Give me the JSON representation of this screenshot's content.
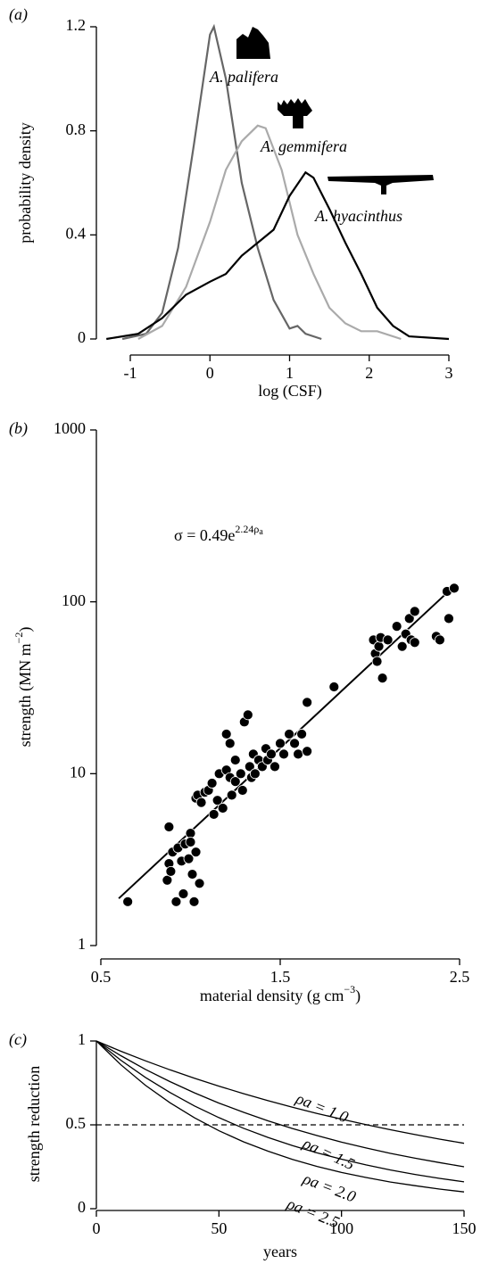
{
  "chart_data": [
    {
      "type": "line",
      "panel_label": "(a)",
      "xlabel": [
        "log (CSF)"
      ],
      "ylabel": [
        "probability density"
      ],
      "xlim": [
        -1,
        3
      ],
      "xticks": [
        -1,
        0,
        1,
        2,
        3
      ],
      "ylim": [
        0,
        1.2
      ],
      "yticks": [
        0,
        0.4,
        0.8,
        1.2
      ],
      "grid": false,
      "series": [
        {
          "name": "A. palifera",
          "color": "#666666",
          "x": [
            -1.1,
            -0.8,
            -0.6,
            -0.4,
            -0.2,
            0,
            0.05,
            0.2,
            0.4,
            0.6,
            0.8,
            1.0,
            1.1,
            1.2,
            1.4
          ],
          "values": [
            0,
            0.02,
            0.1,
            0.35,
            0.75,
            1.17,
            1.2,
            1.0,
            0.6,
            0.35,
            0.15,
            0.04,
            0.05,
            0.02,
            0
          ]
        },
        {
          "name": "A. gemmifera",
          "color": "#aaaaaa",
          "x": [
            -0.9,
            -0.6,
            -0.3,
            0,
            0.2,
            0.4,
            0.6,
            0.7,
            0.9,
            1.1,
            1.3,
            1.5,
            1.7,
            1.9,
            2.1,
            2.4
          ],
          "values": [
            0,
            0.05,
            0.2,
            0.45,
            0.65,
            0.76,
            0.82,
            0.81,
            0.65,
            0.4,
            0.25,
            0.12,
            0.06,
            0.03,
            0.03,
            0
          ]
        },
        {
          "name": "A. hyacinthus",
          "color": "#000000",
          "x": [
            -1.3,
            -0.9,
            -0.6,
            -0.3,
            0,
            0.2,
            0.4,
            0.6,
            0.8,
            1.0,
            1.2,
            1.3,
            1.5,
            1.7,
            1.9,
            2.1,
            2.3,
            2.5,
            3.0
          ],
          "values": [
            0,
            0.02,
            0.08,
            0.17,
            0.22,
            0.25,
            0.32,
            0.37,
            0.42,
            0.55,
            0.64,
            0.62,
            0.5,
            0.37,
            0.25,
            0.12,
            0.05,
            0.01,
            0
          ]
        }
      ]
    },
    {
      "type": "scatter",
      "panel_label": "(b)",
      "xlabel": [
        "material density (g cm",
        "−3",
        ")"
      ],
      "ylabel": [
        "strength (MN m",
        "−2",
        ")"
      ],
      "equation": [
        "σ = 0.49e",
        "2.24ρ",
        "a"
      ],
      "xlim": [
        0.5,
        2.5
      ],
      "xticks": [
        0.5,
        1.5,
        2.5
      ],
      "ylim": [
        1,
        1000
      ],
      "yticks": [
        1,
        10,
        100,
        1000
      ],
      "yscale": "log",
      "grid": false,
      "color": "#000000",
      "x": [
        0.65,
        0.87,
        0.88,
        0.88,
        0.89,
        0.9,
        0.92,
        0.93,
        0.95,
        0.96,
        0.97,
        0.99,
        1.0,
        1.0,
        1.01,
        1.02,
        1.03,
        1.03,
        1.04,
        1.05,
        1.06,
        1.08,
        1.1,
        1.12,
        1.13,
        1.15,
        1.16,
        1.18,
        1.2,
        1.2,
        1.22,
        1.22,
        1.23,
        1.25,
        1.25,
        1.28,
        1.29,
        1.3,
        1.32,
        1.33,
        1.34,
        1.35,
        1.36,
        1.38,
        1.4,
        1.42,
        1.43,
        1.45,
        1.47,
        1.5,
        1.52,
        1.55,
        1.58,
        1.6,
        1.62,
        1.65,
        1.65,
        1.8,
        2.02,
        2.03,
        2.04,
        2.05,
        2.07,
        2.06,
        2.1,
        2.15,
        2.18,
        2.2,
        2.22,
        2.23,
        2.25,
        2.25,
        2.37,
        2.39,
        2.43,
        2.44,
        2.47
      ],
      "values": [
        1.8,
        2.4,
        3.0,
        4.9,
        2.7,
        3.5,
        1.8,
        3.7,
        3.1,
        2.0,
        3.9,
        3.2,
        4.5,
        4.0,
        2.6,
        1.8,
        3.5,
        7.2,
        7.5,
        2.3,
        6.8,
        7.8,
        8.0,
        8.8,
        5.8,
        7.0,
        10.0,
        6.3,
        17.0,
        10.5,
        9.5,
        15.0,
        7.5,
        12.0,
        9.0,
        10.0,
        8.0,
        20.0,
        22.0,
        11.0,
        9.5,
        13.0,
        10.0,
        12.0,
        11.0,
        14.0,
        12.0,
        13.0,
        11.0,
        15.0,
        13.0,
        17.0,
        15.0,
        13.0,
        17.0,
        26.0,
        13.5,
        32.0,
        60.0,
        50.0,
        45.0,
        55.0,
        36.0,
        62.0,
        60.0,
        72.0,
        55.0,
        65.0,
        80.0,
        60.0,
        88.0,
        58.0,
        63.0,
        60.0,
        115.0,
        80.0,
        120.0
      ],
      "fit_line": {
        "x": [
          0.6,
          2.45
        ],
        "values": [
          1.88,
          118
        ]
      }
    },
    {
      "type": "line",
      "panel_label": "(c)",
      "xlabel": [
        "years"
      ],
      "ylabel": [
        "strength reduction"
      ],
      "xlim": [
        0,
        150
      ],
      "xticks": [
        0,
        50,
        100,
        150
      ],
      "ylim": [
        0,
        1
      ],
      "yticks": [
        0,
        0.5,
        1.0
      ],
      "grid": false,
      "hline": 0.5,
      "x": [
        0,
        10,
        20,
        30,
        40,
        50,
        60,
        70,
        80,
        90,
        100,
        110,
        120,
        130,
        140,
        150
      ],
      "series": [
        {
          "name": "ρa = 1.0",
          "color": "#000000",
          "values": [
            1,
            0.939,
            0.882,
            0.828,
            0.778,
            0.731,
            0.686,
            0.644,
            0.605,
            0.568,
            0.534,
            0.501,
            0.471,
            0.442,
            0.415,
            0.39
          ]
        },
        {
          "name": "ρa = 1.5",
          "color": "#000000",
          "values": [
            1,
            0.912,
            0.831,
            0.758,
            0.691,
            0.63,
            0.575,
            0.524,
            0.478,
            0.436,
            0.397,
            0.362,
            0.33,
            0.301,
            0.275,
            0.25
          ]
        },
        {
          "name": "ρa = 2.0",
          "color": "#000000",
          "values": [
            1,
            0.885,
            0.783,
            0.693,
            0.613,
            0.543,
            0.48,
            0.425,
            0.376,
            0.333,
            0.295,
            0.261,
            0.231,
            0.204,
            0.181,
            0.16
          ]
        },
        {
          "name": "ρa = 2.5",
          "color": "#000000",
          "values": [
            1,
            0.858,
            0.736,
            0.632,
            0.542,
            0.465,
            0.399,
            0.343,
            0.294,
            0.252,
            0.216,
            0.186,
            0.159,
            0.137,
            0.117,
            0.1
          ]
        }
      ]
    }
  ]
}
